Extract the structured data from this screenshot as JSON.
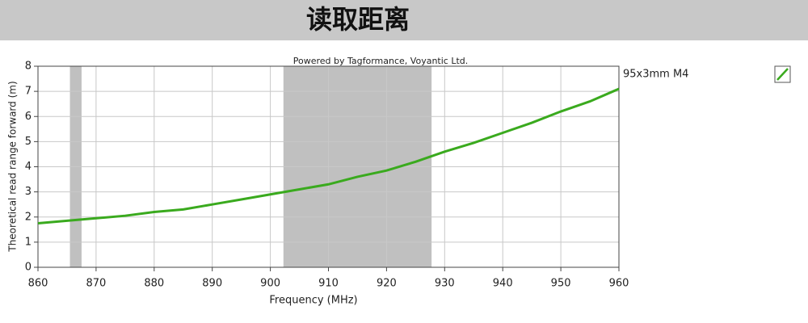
{
  "chart_data": {
    "type": "line",
    "title": "读取距离",
    "annotation": "Powered by Tagformance, Voyantic Ltd.",
    "xlabel": "Frequency (MHz)",
    "ylabel": "Theoretical read range forward (m)",
    "x": [
      860,
      865,
      870,
      875,
      880,
      885,
      890,
      895,
      900,
      905,
      910,
      915,
      920,
      925,
      930,
      935,
      940,
      945,
      950,
      955,
      960
    ],
    "series": [
      {
        "name": "95x3mm M4",
        "color": "#3aaa1e",
        "values": [
          1.75,
          1.85,
          1.95,
          2.05,
          2.2,
          2.3,
          2.5,
          2.7,
          2.9,
          3.1,
          3.3,
          3.6,
          3.85,
          4.2,
          4.6,
          4.95,
          5.35,
          5.75,
          6.2,
          6.6,
          7.1
        ]
      }
    ],
    "bands": [
      [
        865.5,
        867.5
      ],
      [
        902.25,
        927.75
      ]
    ],
    "band_color": "#c0c0c0",
    "xlim": [
      860,
      960
    ],
    "xticks": [
      860,
      870,
      880,
      890,
      900,
      910,
      920,
      930,
      940,
      950,
      960
    ],
    "ylim": [
      0,
      8
    ],
    "yticks": [
      0,
      1,
      2,
      3,
      4,
      5,
      6,
      7,
      8
    ],
    "grid": true,
    "legend": "right"
  }
}
